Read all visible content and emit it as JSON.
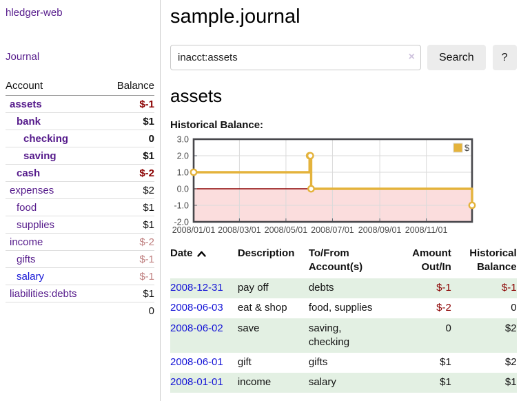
{
  "app": {
    "brand": "hledger-web"
  },
  "sidebar": {
    "journal_link": "Journal",
    "accounts": {
      "header_account": "Account",
      "header_balance": "Balance",
      "rows": [
        {
          "name": "assets",
          "balance": "$-1",
          "depth": 1,
          "bold": true,
          "balance_class": "bal-neg-strong",
          "link_class": "link-purple"
        },
        {
          "name": "bank",
          "balance": "$1",
          "depth": 2,
          "bold": true,
          "balance_class": "bal-pos",
          "link_class": "link-purple"
        },
        {
          "name": "checking",
          "balance": "0",
          "depth": 3,
          "bold": true,
          "balance_class": "bal-pos",
          "link_class": "link-purple"
        },
        {
          "name": "saving",
          "balance": "$1",
          "depth": 3,
          "bold": true,
          "balance_class": "bal-pos",
          "link_class": "link-purple"
        },
        {
          "name": "cash",
          "balance": "$-2",
          "depth": 2,
          "bold": true,
          "balance_class": "bal-neg-strong",
          "link_class": "link-purple"
        },
        {
          "name": "expenses",
          "balance": "$2",
          "depth": 1,
          "bold": false,
          "balance_class": "bal-pos",
          "link_class": "link-purple"
        },
        {
          "name": "food",
          "balance": "$1",
          "depth": 2,
          "bold": false,
          "balance_class": "bal-pos",
          "link_class": "link-purple"
        },
        {
          "name": "supplies",
          "balance": "$1",
          "depth": 2,
          "bold": false,
          "balance_class": "bal-pos",
          "link_class": "link-purple"
        },
        {
          "name": "income",
          "balance": "$-2",
          "depth": 1,
          "bold": false,
          "balance_class": "bal-neg-soft",
          "link_class": "link-purple"
        },
        {
          "name": "gifts",
          "balance": "$-1",
          "depth": 2,
          "bold": false,
          "balance_class": "bal-neg-soft",
          "link_class": "link-purple"
        },
        {
          "name": "salary",
          "balance": "$-1",
          "depth": 2,
          "bold": false,
          "balance_class": "bal-neg-soft",
          "link_class": "link-blue"
        },
        {
          "name": "liabilities:debts",
          "balance": "$1",
          "depth": 1,
          "bold": false,
          "balance_class": "bal-pos",
          "link_class": "link-purple"
        }
      ],
      "total": "0"
    }
  },
  "main": {
    "title": "sample.journal",
    "search": {
      "value": "inacct:assets",
      "clear_label": "×",
      "submit_label": "Search",
      "help_label": "?"
    },
    "account_heading": "assets",
    "section_label": "Historical Balance:",
    "register": {
      "headers": {
        "date": "Date",
        "description": "Description",
        "accounts": "To/From Account(s)",
        "amount": "Amount Out/In",
        "balance": "Historical Balance"
      },
      "rows": [
        {
          "date": "2008-12-31",
          "description": "pay off",
          "accounts": "debts",
          "amount": "$-1",
          "amount_negative": true,
          "balance": "$-1",
          "balance_negative": true,
          "striped": true
        },
        {
          "date": "2008-06-03",
          "description": "eat & shop",
          "accounts": "food, supplies",
          "amount": "$-2",
          "amount_negative": true,
          "balance": "0",
          "balance_negative": false,
          "striped": false
        },
        {
          "date": "2008-06-02",
          "description": "save",
          "accounts": "saving, checking",
          "amount": "0",
          "amount_negative": false,
          "balance": "$2",
          "balance_negative": false,
          "striped": true
        },
        {
          "date": "2008-06-01",
          "description": "gift",
          "accounts": "gifts",
          "amount": "$1",
          "amount_negative": false,
          "balance": "$2",
          "balance_negative": false,
          "striped": false
        },
        {
          "date": "2008-01-01",
          "description": "income",
          "accounts": "salary",
          "amount": "$1",
          "amount_negative": false,
          "balance": "$1",
          "balance_negative": false,
          "striped": true
        }
      ]
    }
  },
  "chart_data": {
    "type": "line",
    "title": "Historical Balance",
    "step": true,
    "legend_label": "$",
    "legend_position": "top-right",
    "series_color": "#e4b33c",
    "x_range_days": [
      0,
      365
    ],
    "points": [
      {
        "date": "2008-01-01",
        "day": 0,
        "value": 1
      },
      {
        "date": "2008-06-01",
        "day": 152,
        "value": 2
      },
      {
        "date": "2008-06-02",
        "day": 153,
        "value": 2
      },
      {
        "date": "2008-06-03",
        "day": 154,
        "value": 0
      },
      {
        "date": "2008-12-31",
        "day": 365,
        "value": -1
      }
    ],
    "ylim": [
      -2,
      3
    ],
    "yticks": [
      3.0,
      2.0,
      1.0,
      0.0,
      -1.0,
      -2.0
    ],
    "xticks": [
      {
        "day": 0,
        "label": "2008/01/01"
      },
      {
        "day": 60,
        "label": "2008/03/01"
      },
      {
        "day": 121,
        "label": "2008/05/01"
      },
      {
        "day": 182,
        "label": "2008/07/01"
      },
      {
        "day": 244,
        "label": "2008/09/01"
      },
      {
        "day": 305,
        "label": "2008/11/01"
      }
    ],
    "grid": true,
    "negative_fill": "#fbdddd",
    "zero_line_color": "#8b0000",
    "border_color": "#47474b",
    "gridline_color": "#dadada",
    "tick_label_color": "#4b4b4b"
  },
  "colors": {
    "link_purple": "#551a8b",
    "link_blue": "#1414d6",
    "negative_strong": "#8b0000",
    "negative_soft": "#bf7f7f",
    "row_stripe_green": "#e3f0e3",
    "series_gold": "#e4b33c",
    "negative_region_pink": "#fbdddd"
  }
}
